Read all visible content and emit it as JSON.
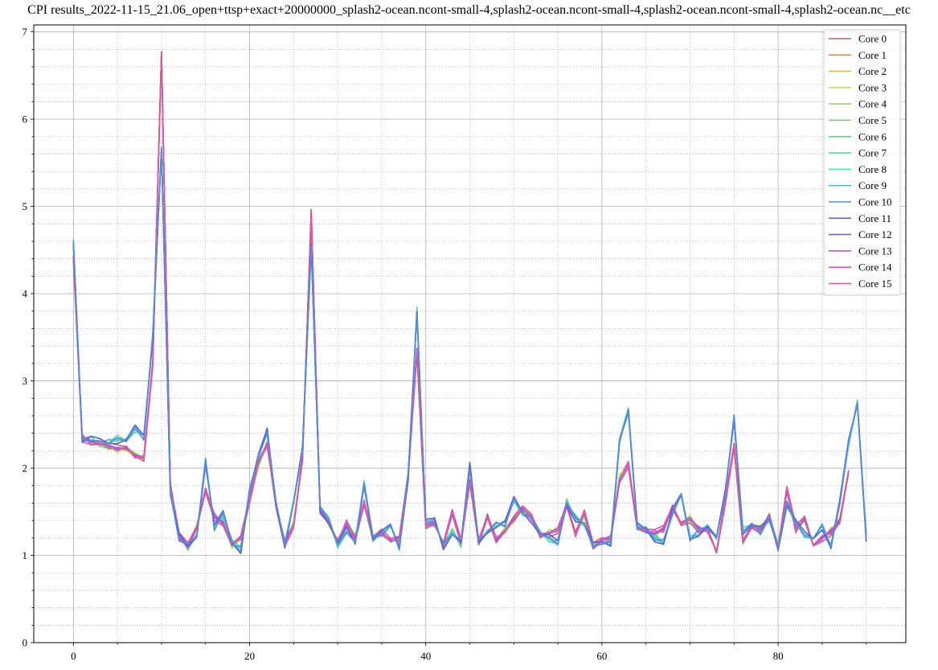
{
  "chart_data": {
    "type": "line",
    "title": "CPI results_2022-11-15_21.06_open+ttsp+exact+20000000_splash2-ocean.ncont-small-4,splash2-ocean.ncont-small-4,splash2-ocean.ncont-small-4,splash2-ocean.nc__etc",
    "xlabel": "",
    "ylabel": "",
    "xlim": [
      -4.5,
      94.5
    ],
    "ylim": [
      0,
      7.08
    ],
    "x_ticks": [
      0,
      20,
      40,
      60,
      80
    ],
    "y_ticks": [
      0,
      1,
      2,
      3,
      4,
      5,
      6,
      7
    ],
    "grid": "major solid, minor dotted",
    "legend_position": "top-right",
    "series": [
      {
        "name": "Core 0",
        "color": "#db5f57"
      },
      {
        "name": "Core 1",
        "color": "#db8c57"
      },
      {
        "name": "Core 2",
        "color": "#dbb957"
      },
      {
        "name": "Core 3",
        "color": "#c8db57"
      },
      {
        "name": "Core 4",
        "color": "#9bdb57"
      },
      {
        "name": "Core 5",
        "color": "#6edb57"
      },
      {
        "name": "Core 6",
        "color": "#57db6f"
      },
      {
        "name": "Core 7",
        "color": "#57db9c"
      },
      {
        "name": "Core 8",
        "color": "#57dbc9"
      },
      {
        "name": "Core 9",
        "color": "#57b9db"
      },
      {
        "name": "Core 10",
        "color": "#578cdb"
      },
      {
        "name": "Core 11",
        "color": "#575fdb"
      },
      {
        "name": "Core 12",
        "color": "#8a57db"
      },
      {
        "name": "Core 13",
        "color": "#b757db"
      },
      {
        "name": "Core 14",
        "color": "#db57c8"
      },
      {
        "name": "Core 15",
        "color": "#db579b"
      }
    ],
    "group_a_base": [
      4.6,
      2.32,
      2.33,
      2.3,
      2.3,
      2.33,
      2.33,
      2.45,
      2.35,
      3.5,
      5.7,
      1.7,
      1.2,
      1.1,
      1.25,
      2.07,
      1.32,
      1.47,
      1.15,
      1.07,
      1.75,
      2.12,
      2.42,
      1.6,
      1.13,
      1.6,
      2.2,
      4.55,
      1.55,
      1.4,
      1.12,
      1.28,
      1.13,
      1.84,
      1.2,
      1.25,
      1.32,
      1.1,
      1.9,
      3.8,
      1.37,
      1.4,
      1.1,
      1.28,
      1.14,
      2.02,
      1.14,
      1.3,
      1.35,
      1.36,
      1.63,
      1.5,
      1.42,
      1.25,
      1.2,
      1.14,
      1.6,
      1.43,
      1.37,
      1.1,
      1.14,
      1.15,
      2.33,
      2.65,
      1.33,
      1.3,
      1.2,
      1.15,
      1.5,
      1.67,
      1.2,
      1.27,
      1.34,
      1.17,
      1.72,
      2.58,
      1.28,
      1.34,
      1.28,
      1.42,
      1.1,
      1.6,
      1.38,
      1.23,
      1.2,
      1.34,
      1.1,
      1.6,
      2.3,
      2.75,
      1.2
    ],
    "group_b_base": [
      4.42,
      2.35,
      2.3,
      2.27,
      2.25,
      2.22,
      2.22,
      2.15,
      2.12,
      3.2,
      6.78,
      1.8,
      1.22,
      1.1,
      1.32,
      1.75,
      1.45,
      1.38,
      1.12,
      1.2,
      1.62,
      2.05,
      2.28,
      1.58,
      1.15,
      1.35,
      2.1,
      4.93,
      1.5,
      1.38,
      1.15,
      1.37,
      1.22,
      1.6,
      1.2,
      1.26,
      1.15,
      1.2,
      1.92,
      3.35,
      1.35,
      1.37,
      1.12,
      1.48,
      1.15,
      1.85,
      1.15,
      1.48,
      1.18,
      1.28,
      1.42,
      1.52,
      1.44,
      1.23,
      1.25,
      1.3,
      1.58,
      1.25,
      1.48,
      1.1,
      1.18,
      1.2,
      1.88,
      2.05,
      1.32,
      1.28,
      1.25,
      1.3,
      1.55,
      1.37,
      1.42,
      1.3,
      1.3,
      1.02,
      1.6,
      2.25,
      1.15,
      1.35,
      1.3,
      1.45,
      1.1,
      1.75,
      1.3,
      1.42,
      1.12,
      1.2,
      1.27,
      1.4,
      1.95
    ]
  }
}
